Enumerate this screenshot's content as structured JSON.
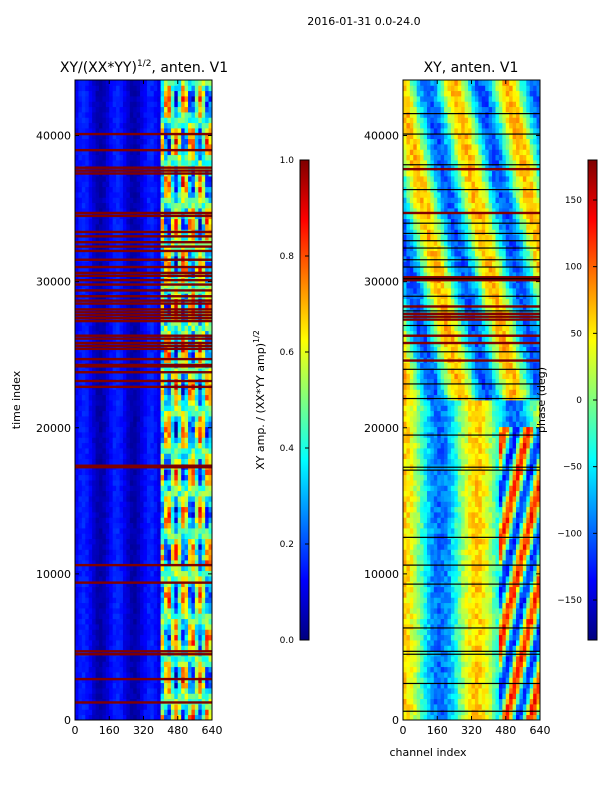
{
  "figure": {
    "suptitle": "2016-01-31 0.0-24.0"
  },
  "colormaps": {
    "jet": [
      "#00007f",
      "#0000ff",
      "#007fff",
      "#00ffff",
      "#7fff7f",
      "#ffff00",
      "#ff7f00",
      "#ff0000",
      "#7f0000"
    ],
    "flag_color": "#7f0000",
    "line_color": "#000000"
  },
  "chart_data": [
    {
      "type": "heatmap",
      "id": "amp",
      "title": "XY/(XX*YY)",
      "title_exponent": "1/2",
      "title_suffix": ", anten. V1",
      "xlabel": "",
      "ylabel": "time index",
      "xlim": [
        0,
        640
      ],
      "ylim": [
        0,
        43800
      ],
      "xticks": [
        0,
        160,
        320,
        480,
        640
      ],
      "yticks": [
        0,
        10000,
        20000,
        30000,
        40000
      ],
      "value_range": [
        0.0,
        1.0
      ],
      "description_of_values": "normalized cross-correlation amplitude: mostly ~0.05-0.15 for channels 0-400, bright 0.4-0.8 blocks for channels 420-600",
      "flagged_time_rows": [
        1200,
        2800,
        4500,
        4700,
        9400,
        10600,
        17300,
        17400,
        22800,
        23200,
        23800,
        24200,
        24300,
        24700,
        25400,
        25600,
        25800,
        26100,
        26300,
        27300,
        27500,
        27700,
        27900,
        28100,
        28500,
        28700,
        29000,
        29400,
        29800,
        30100,
        30400,
        30600,
        31000,
        31500,
        32100,
        32400,
        32700,
        33100,
        33400,
        34500,
        34700,
        37400,
        37600,
        37800,
        39000,
        40100
      ],
      "colorbar": {
        "label": "XY amp. / (XX*YY amp)",
        "label_exponent": "1/2",
        "ticks": [
          0.0,
          0.2,
          0.4,
          0.6,
          0.8,
          1.0
        ],
        "tick_labels": [
          "0.0",
          "0.2",
          "0.4",
          "0.6",
          "0.8",
          "1.0"
        ]
      }
    },
    {
      "type": "heatmap",
      "id": "phase",
      "title": "XY, anten. V1",
      "xlabel": "channel index",
      "ylabel": "",
      "xlim": [
        0,
        640
      ],
      "ylim": [
        0,
        43800
      ],
      "xticks": [
        0,
        160,
        320,
        480,
        640
      ],
      "yticks": [
        0,
        10000,
        20000,
        30000,
        40000
      ],
      "value_range": [
        -180,
        180
      ],
      "description_of_values": "cross-correlation phase in degrees; vertical banding across channels (orange/yellow bands near 0-40, 200-230, 340-380, cyan/blue elsewhere), slanted stripes in channels 450-600 below time 20000",
      "flagged_time_rows": [
        24600,
        25800,
        26300,
        27400,
        27600,
        27800,
        28300,
        30100,
        30300,
        34700,
        37700
      ],
      "black_rows": [
        600,
        2500,
        4500,
        4700,
        6300,
        9300,
        10600,
        12500,
        17100,
        17300,
        19500,
        22000,
        23000,
        24000,
        25200,
        27000,
        28000,
        29000,
        30200,
        31000,
        31500,
        32300,
        32800,
        33300,
        34000,
        36300,
        38000,
        40100,
        41500
      ],
      "colorbar": {
        "label": "phase (deg)",
        "ticks": [
          -150,
          -100,
          -50,
          0,
          50,
          100,
          150
        ],
        "tick_labels": [
          "−150",
          "−100",
          "−50",
          "0",
          "50",
          "100",
          "150"
        ]
      }
    }
  ]
}
